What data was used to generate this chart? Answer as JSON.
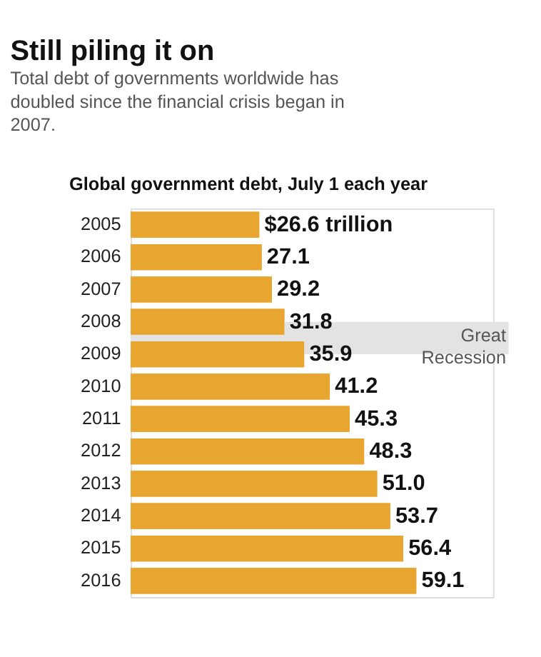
{
  "chart_data": {
    "type": "bar",
    "orientation": "horizontal",
    "title": "Still piling it on",
    "subtitle": "Total debt of governments worldwide has doubled since the financial crisis began in 2007.",
    "ylabel": "Global government  debt, July 1 each year",
    "categories": [
      "2005",
      "2006",
      "2007",
      "2008",
      "2009",
      "2010",
      "2011",
      "2012",
      "2013",
      "2014",
      "2015",
      "2016"
    ],
    "values": [
      26.6,
      27.1,
      29.2,
      31.8,
      35.9,
      41.2,
      45.3,
      48.3,
      51.0,
      53.7,
      56.4,
      59.1
    ],
    "value_labels": [
      "$26.6 trillion",
      "27.1",
      "29.2",
      "31.8",
      "35.9",
      "41.2",
      "45.3",
      "48.3",
      "51.0",
      "53.7",
      "56.4",
      "59.1"
    ],
    "color": "#e8a631",
    "xlim": [
      0,
      75
    ],
    "tick_labels": "y",
    "bands": [
      {
        "axis": "y",
        "from": "2008",
        "to": "2009",
        "label": "Great Recession",
        "color": "#e3e3e3"
      }
    ]
  }
}
